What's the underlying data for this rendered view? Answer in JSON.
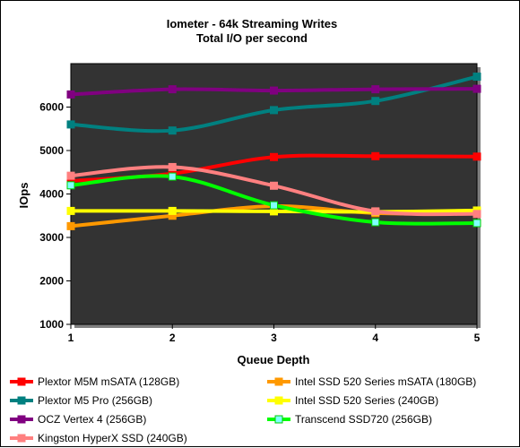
{
  "chart_data": {
    "type": "line",
    "title": "Iometer - 64k  Streaming Writes",
    "subtitle": "Total I/O per second",
    "xlabel": "Queue Depth",
    "ylabel": "IOps",
    "x": [
      1,
      2,
      3,
      4,
      5
    ],
    "xticks": [
      "1",
      "2",
      "3",
      "4",
      "5"
    ],
    "ylim": [
      1000,
      7000
    ],
    "yticks": [
      "1000",
      "2000",
      "3000",
      "4000",
      "5000",
      "6000"
    ],
    "grid": false,
    "plot_background": "#333333",
    "legend_position": "bottom",
    "series": [
      {
        "name": "Plextor M5M mSATA (128GB)",
        "color": "#ff0000",
        "values": [
          4300,
          4470,
          4850,
          4870,
          4860
        ]
      },
      {
        "name": "Intel SSD 520 Series mSATA (180GB)",
        "color": "#ff9900",
        "values": [
          3260,
          3500,
          3720,
          3560,
          3550
        ]
      },
      {
        "name": "Plextor M5 Pro (256GB)",
        "color": "#008080",
        "values": [
          5600,
          5460,
          5930,
          6140,
          6700
        ]
      },
      {
        "name": "Intel SSD 520 Series (240GB)",
        "color": "#ffff00",
        "values": [
          3610,
          3610,
          3600,
          3590,
          3620
        ]
      },
      {
        "name": "OCZ Vertex 4 (256GB)",
        "color": "#800080",
        "values": [
          6290,
          6410,
          6380,
          6410,
          6420
        ]
      },
      {
        "name": "Transcend SSD720 (256GB)",
        "color": "#00ff00",
        "values": [
          4200,
          4400,
          3740,
          3350,
          3330
        ]
      },
      {
        "name": "Kingston HyperX SSD (240GB)",
        "color": "#ff8080",
        "values": [
          4420,
          4620,
          4190,
          3600,
          3540
        ]
      }
    ]
  }
}
